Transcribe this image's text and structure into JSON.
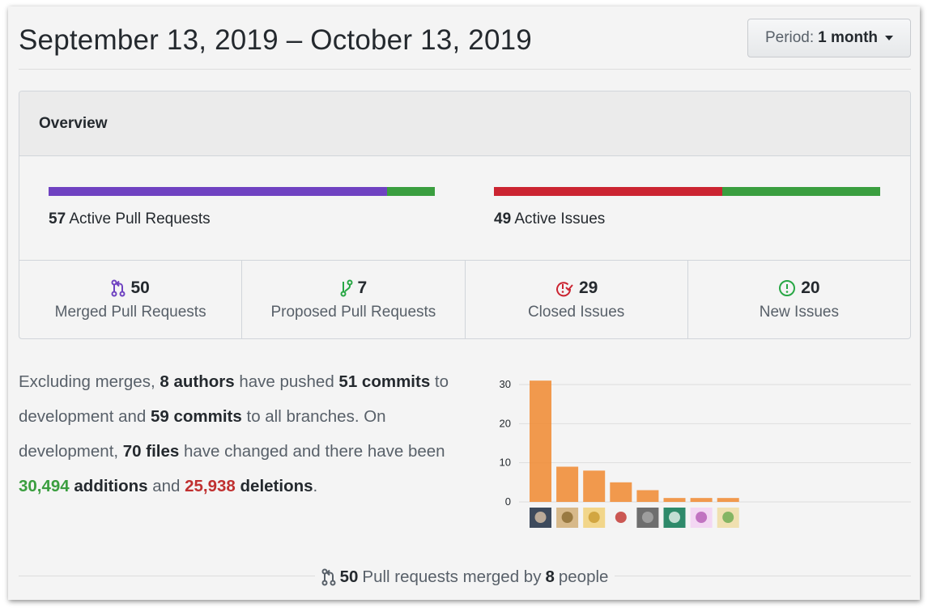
{
  "header": {
    "date_range": "September 13, 2019 – October 13, 2019",
    "period_label": "Period:",
    "period_value": "1 month"
  },
  "overview": {
    "title": "Overview",
    "pull_requests_bar": {
      "count": "57",
      "label": "Active Pull Requests",
      "merged_fraction": 0.877,
      "merged_color": "#6f42c1",
      "open_color": "#3a9e3f"
    },
    "issues_bar": {
      "count": "49",
      "label": "Active Issues",
      "closed_fraction": 0.592,
      "closed_color": "#cb2431",
      "open_color": "#3a9e3f"
    },
    "stats": [
      {
        "icon": "git-merge-icon",
        "value": "50",
        "label": "Merged Pull Requests",
        "color": "#6f42c1"
      },
      {
        "icon": "git-pull-request-icon",
        "value": "7",
        "label": "Proposed Pull Requests",
        "color": "#28a745"
      },
      {
        "icon": "issue-closed-icon",
        "value": "29",
        "label": "Closed Issues",
        "color": "#cb2431"
      },
      {
        "icon": "issue-opened-icon",
        "value": "20",
        "label": "New Issues",
        "color": "#28a745"
      }
    ]
  },
  "summary": {
    "t1": "Excluding merges, ",
    "authors": "8 authors",
    "t2": " have pushed ",
    "commits_dev": "51 commits",
    "t3": " to development and ",
    "commits_all": "59 commits",
    "t4": " to all branches. On development, ",
    "files": "70 files",
    "t5": " have changed and there have been ",
    "additions_num": "30,494",
    "additions_word": "additions",
    "t6": " and ",
    "deletions_num": "25,938",
    "deletions_word": "deletions",
    "t7": "."
  },
  "chart_data": {
    "type": "bar",
    "categories": [
      "author-1",
      "author-2",
      "author-3",
      "author-4",
      "author-5",
      "author-6",
      "author-7",
      "author-8"
    ],
    "values": [
      31,
      9,
      8,
      5,
      3,
      1,
      1,
      1
    ],
    "ylim": [
      0,
      30
    ],
    "yticks": [
      "0",
      "10",
      "20",
      "30"
    ],
    "bar_color": "#f0913f",
    "grid": true
  },
  "footer": {
    "icon": "git-merge-icon",
    "count": "50",
    "t1": " Pull requests merged by ",
    "people": "8",
    "t2": " people"
  }
}
